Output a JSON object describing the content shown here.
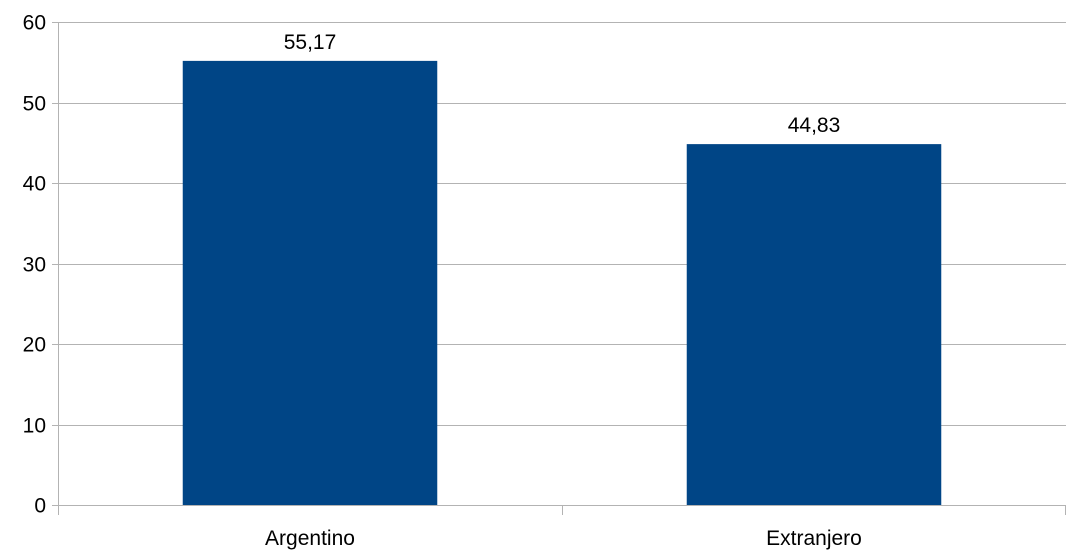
{
  "chart_data": {
    "type": "bar",
    "categories": [
      "Argentino",
      "Extranjero"
    ],
    "values": [
      55.17,
      44.83
    ],
    "value_labels": [
      "55,17",
      "44,83"
    ],
    "ylim": [
      0,
      60
    ],
    "yticks": [
      0,
      10,
      20,
      30,
      40,
      50,
      60
    ],
    "grid": true,
    "legend": "none",
    "bar_color": "#004586"
  }
}
